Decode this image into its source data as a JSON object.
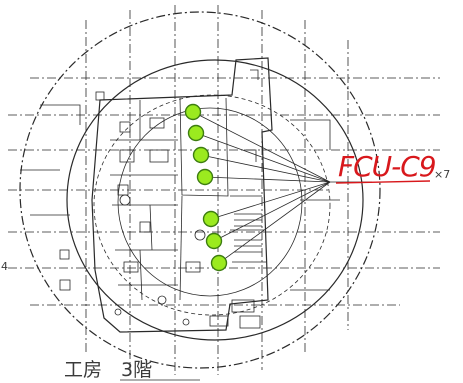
{
  "callout": {
    "unit_label": "FCU-C9",
    "quantity_label": "×7",
    "colors": {
      "label": "#d8181c"
    }
  },
  "floor": {
    "label": "工房　3階"
  },
  "edge_label": "4",
  "markers": {
    "color": "#9bea1f",
    "stroke": "#3d7d10",
    "count": 7
  }
}
